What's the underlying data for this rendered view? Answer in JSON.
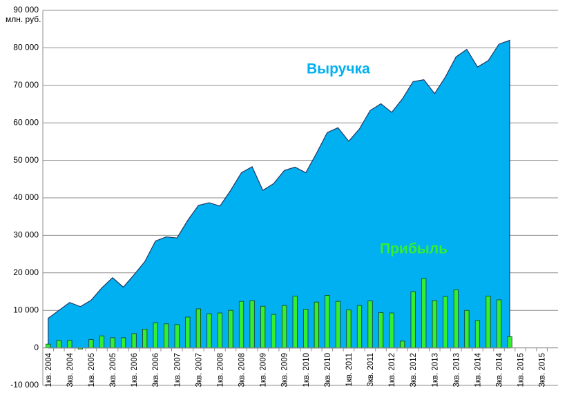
{
  "chart_data": {
    "type": "area_bar",
    "y_label": "млн. руб.",
    "categories": [
      "1кв. 2004",
      null,
      "3кв. 2004",
      null,
      "1кв. 2005",
      null,
      "3кв. 2005",
      null,
      "1кв. 2006",
      null,
      "3кв. 2006",
      null,
      "1кв. 2007",
      null,
      "3кв. 2007",
      null,
      "1кв. 2008",
      null,
      "3кв. 2008",
      null,
      "1кв. 2009",
      null,
      "3кв. 2009",
      null,
      "1кв. 2010",
      null,
      "3кв. 2010",
      null,
      "1кв. 2011",
      null,
      "3кв. 2011",
      null,
      "1кв. 2012",
      null,
      "3кв. 2012",
      null,
      "1кв. 2013",
      null,
      "3кв. 2013",
      null,
      "1кв. 2014",
      null,
      "3кв. 2014",
      null,
      "1кв. 2015",
      null,
      "3кв. 2015",
      null
    ],
    "series": [
      {
        "name": "Выручка",
        "kind": "area",
        "color": "#00b0f0",
        "label_color": "#00b0f0",
        "values": [
          7900,
          10000,
          12100,
          11000,
          12700,
          16000,
          18700,
          16200,
          19500,
          23000,
          28500,
          29600,
          29300,
          34000,
          38000,
          38700,
          37800,
          42000,
          46700,
          48300,
          42000,
          43800,
          47300,
          48200,
          46700,
          51900,
          57400,
          58700,
          55100,
          58400,
          63300,
          65100,
          62800,
          66400,
          71000,
          71500,
          67800,
          72200,
          77600,
          79600,
          74900,
          76600,
          81000,
          82000,
          null,
          null,
          null,
          null
        ]
      },
      {
        "name": "Прибыль",
        "kind": "bar",
        "color": "#33ee33",
        "label_color": "#33ee33",
        "values": [
          1000,
          2000,
          2000,
          -300,
          2200,
          3200,
          2700,
          2700,
          3800,
          5000,
          6700,
          6400,
          6200,
          8200,
          10400,
          9100,
          9300,
          10000,
          12400,
          12600,
          11100,
          8900,
          11300,
          13800,
          10300,
          12200,
          14000,
          12400,
          10100,
          11300,
          12500,
          9400,
          9300,
          1800,
          15000,
          18500,
          12600,
          13700,
          15500,
          10000,
          7300,
          13800,
          12800,
          3000,
          null,
          null,
          null,
          null
        ]
      }
    ],
    "ylim": [
      -10000,
      90000
    ],
    "yticks": [
      {
        "value": -10000,
        "label": "-10 000"
      },
      0,
      {
        "value": 10000,
        "label": "10 000"
      },
      {
        "value": 20000,
        "label": "20 000"
      },
      {
        "value": 30000,
        "label": "30 000"
      },
      {
        "value": 40000,
        "label": "40 000"
      },
      {
        "value": 50000,
        "label": "50 000"
      },
      {
        "value": 60000,
        "label": "60 000"
      },
      {
        "value": 70000,
        "label": "70 000"
      },
      {
        "value": 80000,
        "label": "80 000"
      },
      {
        "value": 90000,
        "label": "90 000"
      }
    ],
    "grid": true
  }
}
